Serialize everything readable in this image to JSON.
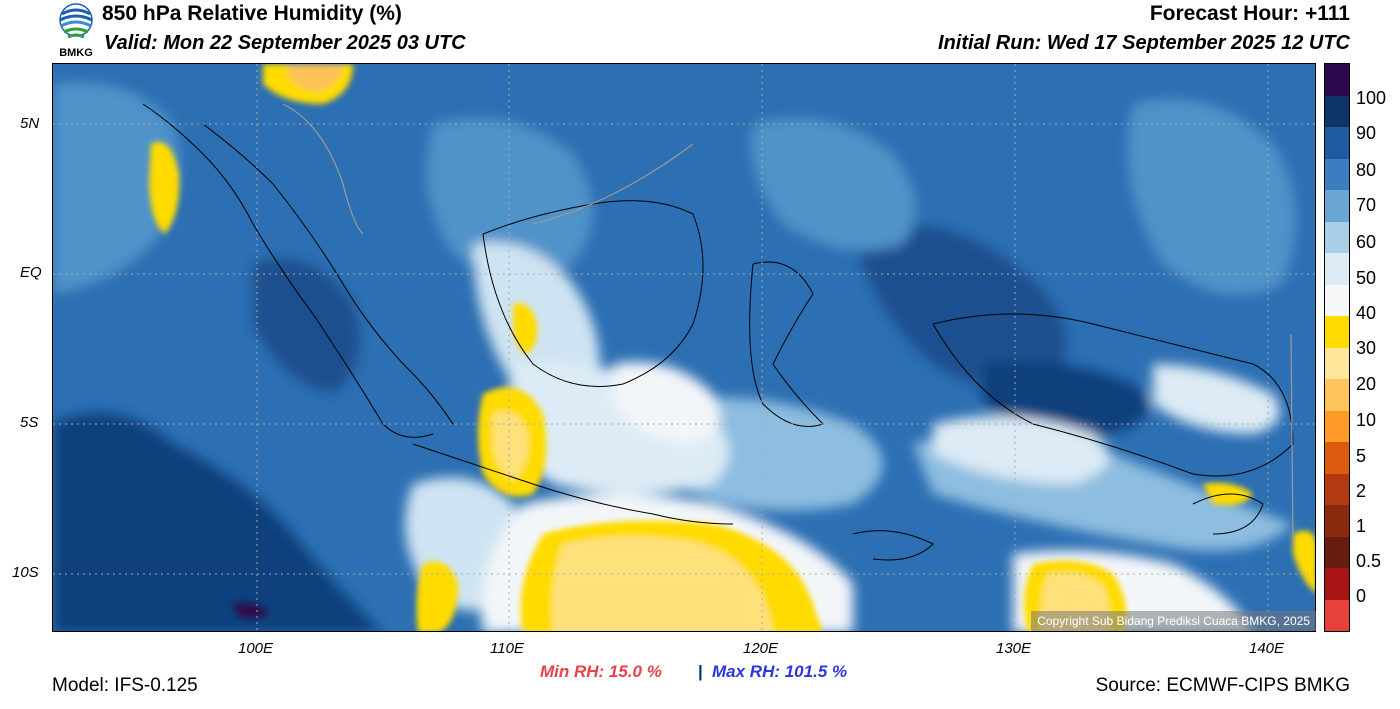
{
  "header": {
    "title": "850 hPa Relative Humidity (%)",
    "valid": "Valid: Mon 22 September 2025 03 UTC",
    "forecast_hour": "Forecast Hour: +111",
    "initial_run": "Initial Run: Wed 17 September 2025 12 UTC",
    "logo_text": "BMKG"
  },
  "map": {
    "lat_labels": [
      "5N",
      "EQ",
      "5S",
      "10S"
    ],
    "lon_labels": [
      "100E",
      "110E",
      "120E",
      "130E",
      "140E"
    ],
    "copyright": "Copyright Sub Bidang Prediksi Cuaca BMKG, 2025",
    "colors": {
      "ocean_deep": "#0f3f7c",
      "humid": "#2c6fb3",
      "moist": "#4f93c9",
      "medium": "#8dbde0",
      "light": "#cfe4f2",
      "dry_white": "#f3f6f9",
      "dry_yellow": "#fee17a",
      "very_dry": "#ffdb00",
      "orange": "#fdc354"
    }
  },
  "colorbar": {
    "labels": [
      "100",
      "90",
      "80",
      "70",
      "60",
      "50",
      "40",
      "30",
      "20",
      "10",
      "5",
      "2",
      "1",
      "0.5",
      "0"
    ],
    "colors": [
      "#2d0a4e",
      "#0e3468",
      "#1f5a9e",
      "#3a7ebf",
      "#6aa6d5",
      "#a9cfe8",
      "#dcebf5",
      "#f6f8fa",
      "#ffdb00",
      "#fee79a",
      "#fec45c",
      "#fd9a28",
      "#dd5a0e",
      "#b33a10",
      "#8a2a0e",
      "#661c0e",
      "#a91516",
      "#e8413b"
    ]
  },
  "footer": {
    "min_rh": "Min RH:  15.0 %",
    "separator": "|",
    "max_rh": "Max RH: 101.5 %",
    "model": "Model: IFS-0.125",
    "source": "Source: ECMWF-CIPS BMKG"
  }
}
